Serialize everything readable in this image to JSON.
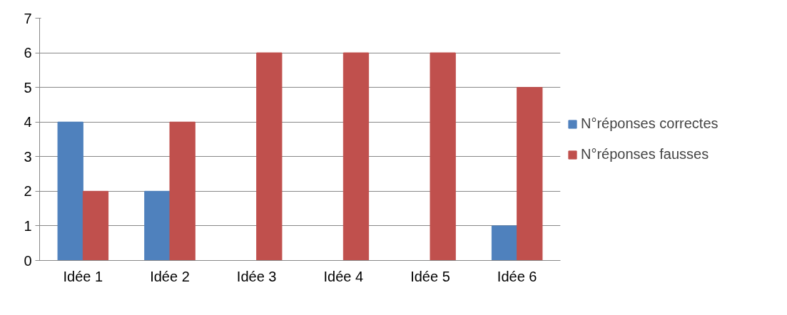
{
  "chart_data": {
    "type": "bar",
    "categories": [
      "Idée 1",
      "Idée 2",
      "Idée 3",
      "Idée 4",
      "Idée 5",
      "Idée 6"
    ],
    "series": [
      {
        "name": "N°réponses correctes",
        "color": "#4f81bd",
        "values": [
          4,
          2,
          0,
          0,
          0,
          1
        ]
      },
      {
        "name": "N°réponses fausses",
        "color": "#c0504d",
        "values": [
          2,
          4,
          6,
          6,
          6,
          5
        ]
      }
    ],
    "ylim": [
      0,
      7
    ],
    "yticks": [
      0,
      1,
      2,
      3,
      4,
      5,
      6,
      7
    ],
    "grid": "y",
    "legend": "right"
  }
}
